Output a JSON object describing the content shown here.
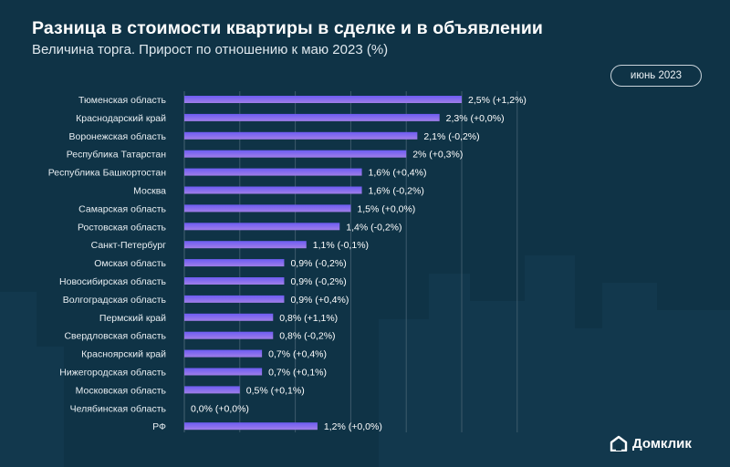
{
  "title": "Разница в стоимости квартиры в сделке и в объявлении",
  "subtitle": "Величина торга. Прирост по отношению к маю 2023 (%)",
  "badge": "июнь 2023",
  "logo_text": "Домклик",
  "colors": {
    "background": "#0f3346",
    "bar_top": "#6d5cf3",
    "bar_bottom": "#a07ee8",
    "gridline": "#3d5a6b",
    "text": "#ffffff"
  },
  "chart_data": {
    "type": "bar",
    "orientation": "horizontal",
    "categories": [
      "Тюменская область",
      "Краснодарский край",
      "Воронежская область",
      "Республика Татарстан",
      "Республика Башкортостан",
      "Москва",
      "Самарская область",
      "Ростовская область",
      "Санкт-Петербург",
      "Омская область",
      "Новосибирская область",
      "Волгоградская область",
      "Пермский край",
      "Свердловская область",
      "Красноярский край",
      "Нижегородская область",
      "Московская область",
      "Челябинская область",
      "РФ"
    ],
    "values": [
      2.5,
      2.3,
      2.1,
      2.0,
      1.6,
      1.6,
      1.5,
      1.4,
      1.1,
      0.9,
      0.9,
      0.9,
      0.8,
      0.8,
      0.7,
      0.7,
      0.5,
      0.0,
      1.2
    ],
    "labels": [
      "2,5% (+1,2%)",
      "2,3% (+0,0%)",
      "2,1% (-0,2%)",
      "2% (+0,3%)",
      "1,6% (+0,4%)",
      "1,6% (-0,2%)",
      "1,5% (+0,0%)",
      "1,4% (-0,2%)",
      "1,1% (-0,1%)",
      "0,9% (-0,2%)",
      "0,9% (-0,2%)",
      "0,9% (+0,4%)",
      "0,8% (+1,1%)",
      "0,8% (-0,2%)",
      "0,7% (+0,4%)",
      "0,7% (+0,1%)",
      "0,5% (+0,1%)",
      "0,0% (+0,0%)",
      "1,2% (+0,0%)"
    ],
    "xlim": [
      0,
      3.0
    ],
    "grid": true
  }
}
